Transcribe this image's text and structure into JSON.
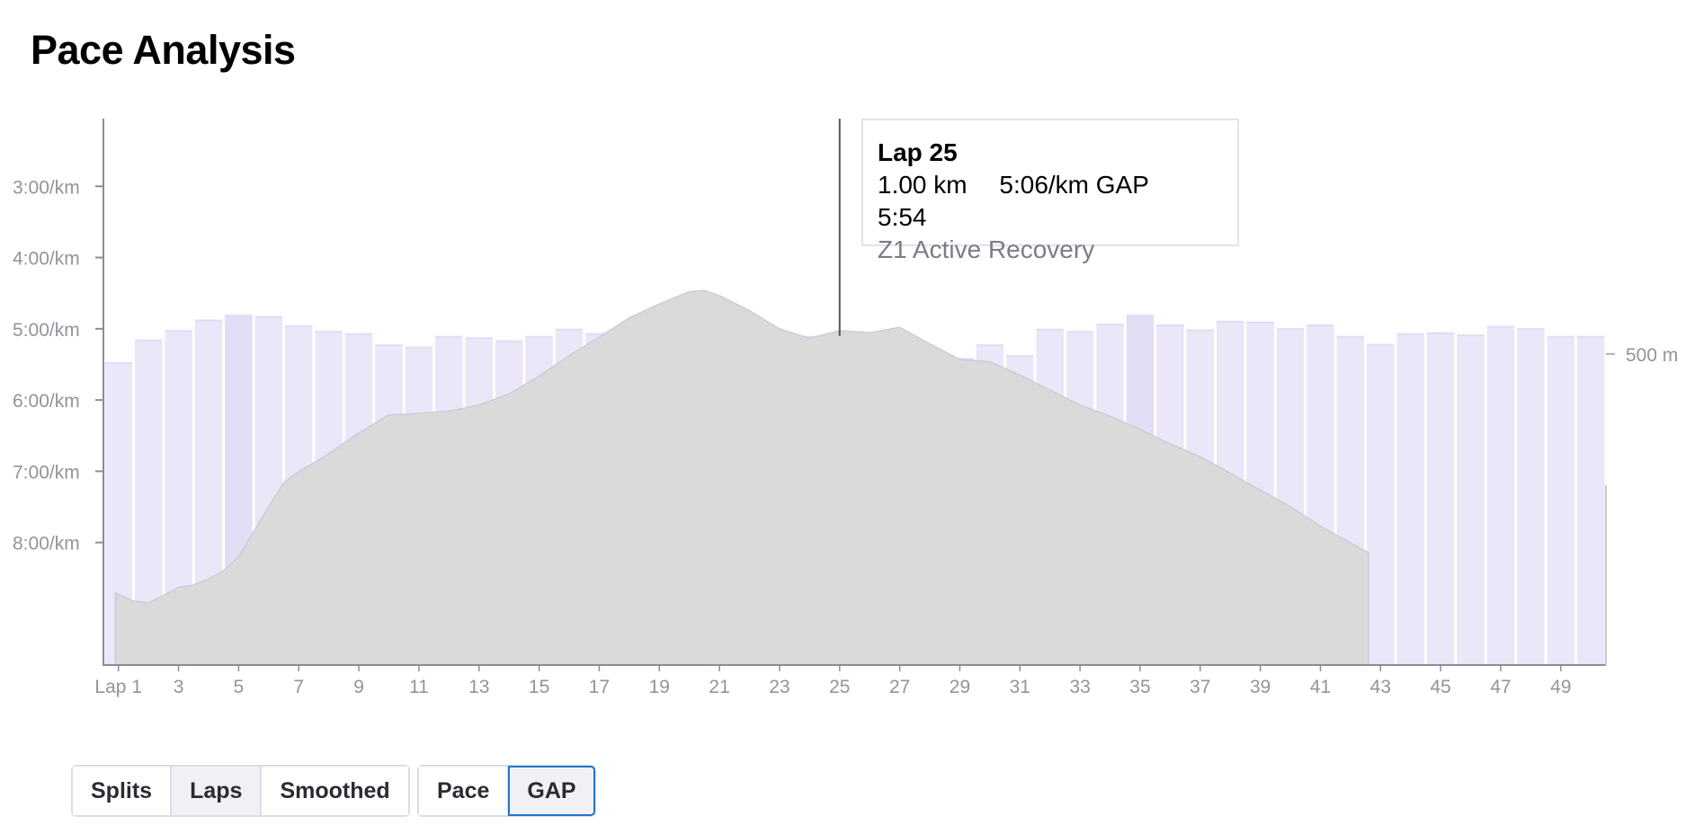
{
  "title": "Pace Analysis",
  "chart_data": {
    "type": "bar",
    "y_axis": {
      "ticks": [
        "3:00/km",
        "4:00/km",
        "5:00/km",
        "6:00/km",
        "7:00/km",
        "8:00/km"
      ],
      "range_min_per_km": [
        2.05,
        9.72
      ]
    },
    "x_axis": {
      "ticks": [
        "Lap 1",
        "3",
        "5",
        "7",
        "9",
        "11",
        "13",
        "15",
        "17",
        "19",
        "21",
        "23",
        "25",
        "27",
        "29",
        "31",
        "33",
        "35",
        "37",
        "39",
        "41",
        "43",
        "45",
        "47",
        "49"
      ]
    },
    "laps": [
      1,
      2,
      3,
      4,
      5,
      6,
      7,
      8,
      9,
      10,
      11,
      12,
      13,
      14,
      15,
      16,
      17,
      18,
      19,
      20,
      21,
      22,
      23,
      24,
      25,
      26,
      27,
      28,
      29,
      30,
      31,
      32,
      33,
      34,
      35,
      36,
      37,
      38,
      39,
      40,
      41,
      42,
      43,
      44,
      45,
      46,
      47,
      48,
      49,
      50
    ],
    "gap_min_per_km": [
      5.47,
      5.15,
      5.02,
      4.87,
      4.8,
      4.82,
      4.95,
      5.03,
      5.06,
      5.22,
      5.25,
      5.1,
      5.12,
      5.16,
      5.1,
      5.0,
      5.06,
      5.15,
      5.21,
      5.06,
      5.32,
      5.25,
      5.4,
      5.1,
      5.1,
      5.26,
      5.43,
      5.46,
      5.41,
      5.22,
      5.37,
      5.0,
      5.03,
      4.93,
      4.8,
      4.94,
      5.01,
      4.89,
      4.9,
      4.99,
      4.94,
      5.1,
      5.21,
      5.06,
      5.05,
      5.08,
      4.96,
      4.99,
      5.1,
      5.1
    ],
    "elevation": {
      "label": "500 m",
      "x_laps": [
        0.9,
        1.5,
        2,
        2.5,
        3,
        3.5,
        4,
        4.5,
        5,
        5.5,
        6,
        6.5,
        7,
        8,
        9,
        10,
        11,
        12,
        13,
        14,
        15,
        16,
        17,
        18,
        19,
        20,
        20.5,
        21,
        22,
        23,
        24,
        25,
        26,
        27,
        28,
        29,
        30,
        31,
        32,
        33,
        34,
        35,
        36,
        37,
        38,
        39,
        40,
        41,
        42,
        42.6
      ],
      "height_m": [
        70,
        55,
        52,
        65,
        80,
        84,
        95,
        110,
        135,
        180,
        225,
        268,
        288,
        320,
        358,
        390,
        393,
        397,
        408,
        428,
        460,
        497,
        530,
        565,
        590,
        612,
        614,
        605,
        578,
        545,
        528,
        542,
        538,
        548,
        518,
        490,
        486,
        462,
        435,
        408,
        388,
        364,
        338,
        315,
        285,
        255,
        225,
        190,
        160,
        142
      ]
    },
    "tooltip": {
      "title": "Lap 25",
      "distance": "1.00 km",
      "pace": "5:06/km GAP",
      "time": "5:54",
      "zone": "Z1 Active Recovery"
    },
    "highlight_lap": 25
  },
  "controls": {
    "view_options": [
      "Splits",
      "Laps",
      "Smoothed"
    ],
    "metric_options": [
      "Pace",
      "GAP"
    ]
  },
  "colors": {
    "bar": "#ebe6f8",
    "bar_dark": "#e4ddf6",
    "bar_highlight": "#f3effb",
    "elevation": "#dadada",
    "axis": "#8b8d96",
    "tick_text": "#92949c",
    "focus": "#1f78c8"
  }
}
